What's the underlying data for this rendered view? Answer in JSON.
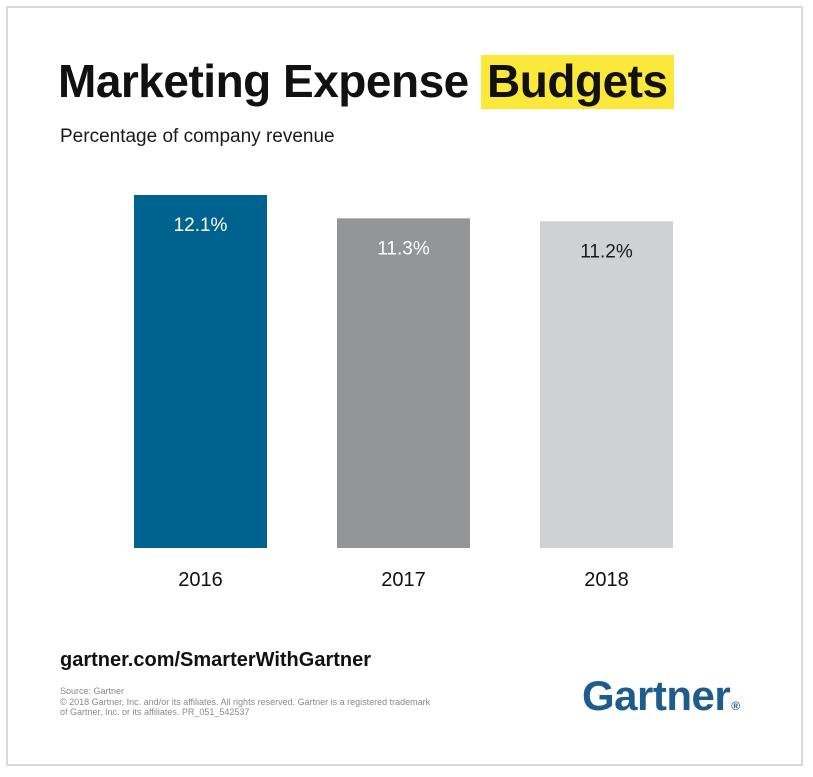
{
  "header": {
    "title_main": "Marketing Expense",
    "title_highlight": "Budgets",
    "subtitle": "Percentage of company revenue"
  },
  "colors": {
    "highlight": "#fae83a",
    "bar_2016": "#00628f",
    "bar_2017": "#939597",
    "bar_2018": "#d0d1d3",
    "brand": "#1e5c8c"
  },
  "chart_data": {
    "type": "bar",
    "title": "Marketing Expense Budgets",
    "subtitle": "Percentage of company revenue",
    "categories": [
      "2016",
      "2017",
      "2018"
    ],
    "values": [
      12.1,
      11.3,
      11.2
    ],
    "data_labels": [
      "12.1%",
      "11.3%",
      "11.2%"
    ],
    "unit": "%",
    "bar_colors": [
      "#00628f",
      "#939597",
      "#d0d1d3"
    ],
    "label_colors": [
      "#ffffff",
      "#ffffff",
      "#1a1a1a"
    ],
    "xlabel": "",
    "ylabel": "",
    "grid": false,
    "legend": "none"
  },
  "footer": {
    "link": "gartner.com/SmarterWithGartner",
    "source_lines": [
      "Source: Gartner",
      "© 2018 Gartner, Inc. and/or its affiliates. All rights reserved. Gartner is a registered trademark",
      "of Gartner, Inc. or its affiliates. PR_051_542537"
    ],
    "logo_text": "Gartner",
    "logo_mark": "®"
  }
}
